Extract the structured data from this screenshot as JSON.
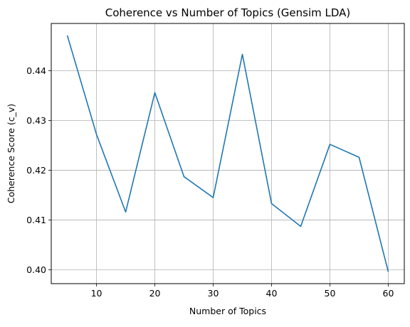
{
  "chart_data": {
    "type": "line",
    "title": "Coherence vs Number of Topics (Gensim LDA)",
    "xlabel": "Number of Topics",
    "ylabel": "Coherence Score (c_v)",
    "x": [
      5,
      10,
      15,
      20,
      25,
      30,
      35,
      40,
      45,
      50,
      55,
      60
    ],
    "series": [
      {
        "values": [
          0.4471,
          0.4272,
          0.4116,
          0.4356,
          0.4187,
          0.4145,
          0.4433,
          0.4133,
          0.4087,
          0.4252,
          0.4226,
          0.3996
        ]
      }
    ],
    "xlim": [
      2.25,
      62.75
    ],
    "ylim": [
      0.3972,
      0.4495
    ],
    "xticks": [
      10,
      20,
      30,
      40,
      50,
      60
    ],
    "xtick_labels": [
      "10",
      "20",
      "30",
      "40",
      "50",
      "60"
    ],
    "yticks": [
      0.4,
      0.41,
      0.42,
      0.43,
      0.44
    ],
    "ytick_labels": [
      "0.40",
      "0.41",
      "0.42",
      "0.43",
      "0.44"
    ],
    "grid": true,
    "line_color": "#1f77b4",
    "grid_color": "#b0b0b0"
  }
}
